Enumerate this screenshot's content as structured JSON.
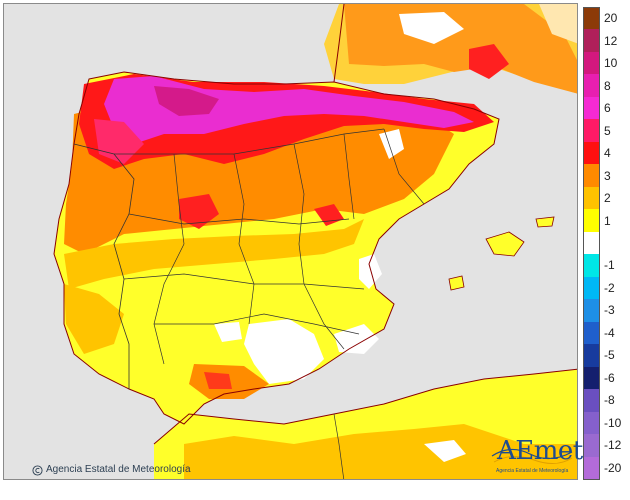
{
  "credit": "Agencia Estatal de Meteorología",
  "logo": {
    "wordmark": "AEmet",
    "subtitle": "Agencia Estatal de Meteorología"
  },
  "legend": [
    {
      "label": "20",
      "color": "#8c3a08"
    },
    {
      "label": "12",
      "color": "#b0205a"
    },
    {
      "label": "10",
      "color": "#d3187e"
    },
    {
      "label": "8",
      "color": "#e81fb0"
    },
    {
      "label": "6",
      "color": "#f52ad3"
    },
    {
      "label": "5",
      "color": "#ff1a66"
    },
    {
      "label": "4",
      "color": "#ff1010"
    },
    {
      "label": "3",
      "color": "#ff8a00"
    },
    {
      "label": "2",
      "color": "#ffc200"
    },
    {
      "label": "1",
      "color": "#ffff00"
    },
    {
      "label": "",
      "color": "#ffffff"
    },
    {
      "label": "-1",
      "color": "#00e6e6"
    },
    {
      "label": "-2",
      "color": "#00b8f5"
    },
    {
      "label": "-3",
      "color": "#1e8fe6"
    },
    {
      "label": "-4",
      "color": "#1f5fcc"
    },
    {
      "label": "-5",
      "color": "#173b9e"
    },
    {
      "label": "-6",
      "color": "#141f6e"
    },
    {
      "label": "-8",
      "color": "#6a4fc0"
    },
    {
      "label": "-10",
      "color": "#8560cc"
    },
    {
      "label": "-12",
      "color": "#9a6ad0"
    },
    {
      "label": "-20",
      "color": "#b36bd9"
    }
  ]
}
